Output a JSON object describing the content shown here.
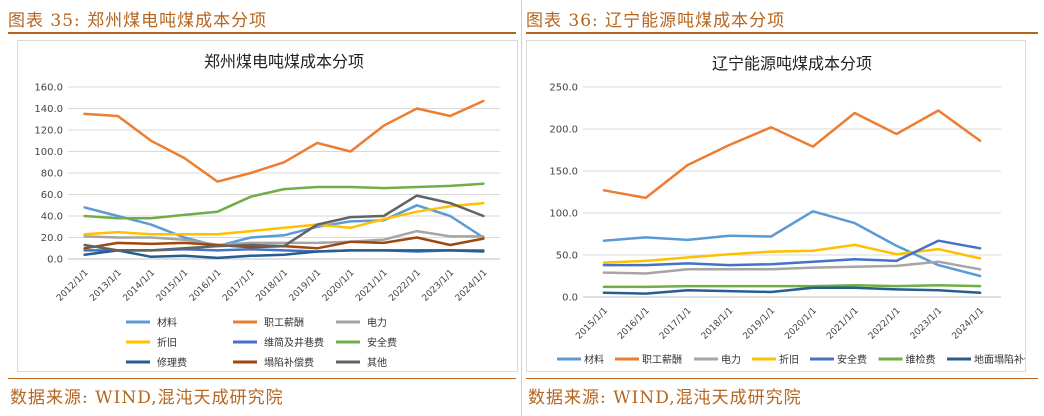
{
  "left_panel": {
    "figure_title": "图表 35: 郑州煤电吨煤成本分项",
    "source": "数据来源: WIND,混沌天成研究院"
  },
  "right_panel": {
    "figure_title": "图表 36: 辽宁能源吨煤成本分项",
    "source": "数据来源: WIND,混沌天成研究院"
  },
  "chart_data": [
    {
      "type": "line",
      "title": "郑州煤电吨煤成本分项",
      "xlabel": "",
      "ylabel": "",
      "ylim": [
        0,
        160
      ],
      "yticks": [
        "0.0",
        "20.0",
        "40.0",
        "60.0",
        "80.0",
        "100.0",
        "120.0",
        "140.0",
        "160.0"
      ],
      "categories": [
        "2012/1/1",
        "2013/1/1",
        "2014/1/1",
        "2015/1/1",
        "2016/1/1",
        "2017/1/1",
        "2018/1/1",
        "2019/1/1",
        "2020/1/1",
        "2021/1/1",
        "2022/1/1",
        "2023/1/1",
        "2024/1/1"
      ],
      "legend_position": "bottom",
      "series": [
        {
          "name": "材料",
          "color": "#5b9bd5",
          "values": [
            48,
            40,
            32,
            20,
            12,
            20,
            22,
            30,
            35,
            36,
            50,
            40,
            20
          ]
        },
        {
          "name": "职工薪酬",
          "color": "#ed7d31",
          "values": [
            135,
            133,
            110,
            94,
            72,
            80,
            90,
            108,
            100,
            124,
            140,
            133,
            147
          ]
        },
        {
          "name": "电力",
          "color": "#a5a5a5",
          "values": [
            21,
            20,
            20,
            18,
            13,
            15,
            15,
            15,
            16,
            18,
            26,
            21,
            21
          ]
        },
        {
          "name": "折旧",
          "color": "#ffc000",
          "values": [
            23,
            25,
            23,
            23,
            23,
            26,
            29,
            32,
            29,
            37,
            44,
            49,
            52
          ]
        },
        {
          "name": "维简及井巷费",
          "color": "#4472c4",
          "values": [
            8,
            8,
            8,
            9,
            8,
            9,
            8,
            7,
            8,
            8,
            7,
            8,
            8
          ]
        },
        {
          "name": "安全费",
          "color": "#70ad47",
          "values": [
            40,
            38,
            38,
            41,
            44,
            58,
            65,
            67,
            67,
            66,
            67,
            68,
            70
          ]
        },
        {
          "name": "修理费",
          "color": "#255e91",
          "values": [
            4,
            8,
            2,
            3,
            1,
            3,
            4,
            7,
            8,
            8,
            8,
            8,
            7
          ]
        },
        {
          "name": "塌陷补偿费",
          "color": "#9e480e",
          "values": [
            10,
            15,
            14,
            15,
            13,
            11,
            12,
            10,
            16,
            15,
            20,
            13,
            19
          ]
        },
        {
          "name": "其他",
          "color": "#636363",
          "values": [
            13,
            8,
            8,
            10,
            12,
            13,
            12,
            32,
            39,
            40,
            59,
            52,
            40
          ]
        }
      ]
    },
    {
      "type": "line",
      "title": "辽宁能源吨煤成本分项",
      "xlabel": "",
      "ylabel": "",
      "ylim": [
        0,
        250
      ],
      "yticks": [
        "0.0",
        "50.0",
        "100.0",
        "150.0",
        "200.0",
        "250.0"
      ],
      "categories": [
        "2015/1/1",
        "2016/1/1",
        "2017/1/1",
        "2018/1/1",
        "2019/1/1",
        "2020/1/1",
        "2021/1/1",
        "2022/1/1",
        "2023/1/1",
        "2024/1/1"
      ],
      "legend_position": "bottom",
      "series": [
        {
          "name": "材料",
          "color": "#5b9bd5",
          "values": [
            67,
            71,
            68,
            73,
            72,
            102,
            88,
            61,
            38,
            25
          ]
        },
        {
          "name": "职工薪酬",
          "color": "#ed7d31",
          "values": [
            127,
            118,
            157,
            181,
            202,
            179,
            219,
            194,
            222,
            186
          ]
        },
        {
          "name": "电力",
          "color": "#a5a5a5",
          "values": [
            29,
            28,
            33,
            33,
            33,
            35,
            36,
            37,
            42,
            33
          ]
        },
        {
          "name": "折旧",
          "color": "#ffc000",
          "values": [
            41,
            43,
            47,
            51,
            54,
            55,
            62,
            51,
            57,
            46
          ]
        },
        {
          "name": "安全费",
          "color": "#4472c4",
          "values": [
            38,
            38,
            40,
            38,
            39,
            42,
            45,
            43,
            67,
            58
          ]
        },
        {
          "name": "维检费",
          "color": "#70ad47",
          "values": [
            12,
            12,
            13,
            13,
            13,
            13,
            14,
            13,
            14,
            13
          ]
        },
        {
          "name": "地面塌陷补偿费",
          "color": "#255e91",
          "values": [
            5,
            4,
            8,
            7,
            6,
            11,
            11,
            9,
            8,
            5
          ]
        }
      ]
    }
  ]
}
